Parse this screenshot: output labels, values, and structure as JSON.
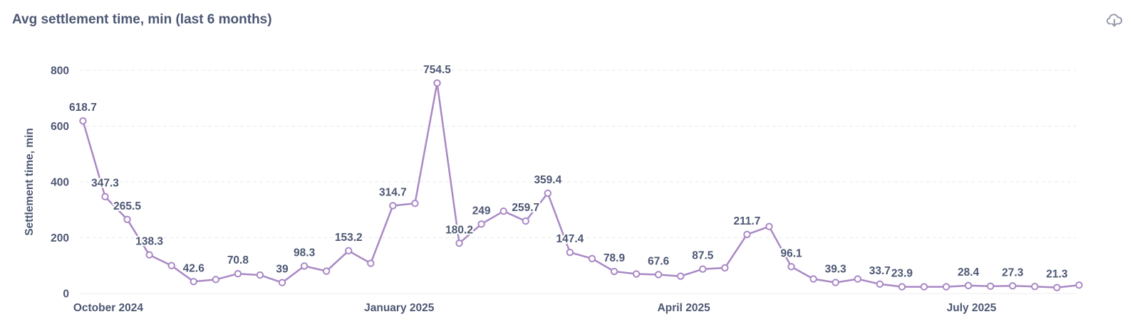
{
  "card": {
    "title": "Avg settlement time, min (last 6 months)",
    "download_icon": "cloud-download-icon"
  },
  "colors": {
    "series": "#a989c5",
    "text": "#4c5773",
    "grid": "#e6e8ec"
  },
  "chart_data": {
    "type": "line",
    "title": "Avg settlement time, min (last 6 months)",
    "xlabel": "",
    "ylabel": "Settlement time, min",
    "ylim": [
      0,
      800
    ],
    "yticks": [
      0,
      200,
      400,
      600,
      800
    ],
    "xlim": [
      "2024-09-22",
      "2025-08-03"
    ],
    "xticks": [
      {
        "date": "2024-10-01",
        "label": "October 2024"
      },
      {
        "date": "2025-01-01",
        "label": "January 2025"
      },
      {
        "date": "2025-04-01",
        "label": "April 2025"
      },
      {
        "date": "2025-07-01",
        "label": "July 2025"
      }
    ],
    "grid": true,
    "grid_style": "dashed horizontal",
    "legend": "none",
    "series": [
      {
        "color": "#a989c5",
        "points": [
          {
            "x": "2024-09-23",
            "y": 618.7,
            "label": "618.7"
          },
          {
            "x": "2024-09-30",
            "y": 347.3,
            "label": "347.3"
          },
          {
            "x": "2024-10-07",
            "y": 265.5,
            "label": "265.5"
          },
          {
            "x": "2024-10-14",
            "y": 138.3,
            "label": "138.3"
          },
          {
            "x": "2024-10-21",
            "y": 100
          },
          {
            "x": "2024-10-28",
            "y": 42.6,
            "label": "42.6"
          },
          {
            "x": "2024-11-04",
            "y": 50
          },
          {
            "x": "2024-11-11",
            "y": 70.8,
            "label": "70.8"
          },
          {
            "x": "2024-11-18",
            "y": 66
          },
          {
            "x": "2024-11-25",
            "y": 39,
            "label": "39"
          },
          {
            "x": "2024-12-02",
            "y": 98.3,
            "label": "98.3"
          },
          {
            "x": "2024-12-09",
            "y": 80
          },
          {
            "x": "2024-12-16",
            "y": 153.2,
            "label": "153.2"
          },
          {
            "x": "2024-12-23",
            "y": 108
          },
          {
            "x": "2024-12-30",
            "y": 314.7,
            "label": "314.7"
          },
          {
            "x": "2025-01-06",
            "y": 323
          },
          {
            "x": "2025-01-13",
            "y": 754.5,
            "label": "754.5"
          },
          {
            "x": "2025-01-20",
            "y": 180.2,
            "label": "180.2"
          },
          {
            "x": "2025-01-27",
            "y": 249,
            "label": "249"
          },
          {
            "x": "2025-02-03",
            "y": 295
          },
          {
            "x": "2025-02-10",
            "y": 259.7,
            "label": "259.7"
          },
          {
            "x": "2025-02-17",
            "y": 359.4,
            "label": "359.4"
          },
          {
            "x": "2025-02-24",
            "y": 147.4,
            "label": "147.4"
          },
          {
            "x": "2025-03-03",
            "y": 125
          },
          {
            "x": "2025-03-10",
            "y": 78.9,
            "label": "78.9"
          },
          {
            "x": "2025-03-17",
            "y": 70
          },
          {
            "x": "2025-03-24",
            "y": 67.6,
            "label": "67.6"
          },
          {
            "x": "2025-03-31",
            "y": 62
          },
          {
            "x": "2025-04-07",
            "y": 87.5,
            "label": "87.5"
          },
          {
            "x": "2025-04-14",
            "y": 92
          },
          {
            "x": "2025-04-21",
            "y": 211.7,
            "label": "211.7"
          },
          {
            "x": "2025-04-28",
            "y": 240
          },
          {
            "x": "2025-05-05",
            "y": 96.1,
            "label": "96.1"
          },
          {
            "x": "2025-05-12",
            "y": 52
          },
          {
            "x": "2025-05-19",
            "y": 39.3,
            "label": "39.3"
          },
          {
            "x": "2025-05-26",
            "y": 52
          },
          {
            "x": "2025-06-02",
            "y": 33.7,
            "label": "33.7"
          },
          {
            "x": "2025-06-09",
            "y": 23.9,
            "label": "23.9"
          },
          {
            "x": "2025-06-16",
            "y": 24
          },
          {
            "x": "2025-06-23",
            "y": 24
          },
          {
            "x": "2025-06-30",
            "y": 28.4,
            "label": "28.4"
          },
          {
            "x": "2025-07-07",
            "y": 26
          },
          {
            "x": "2025-07-14",
            "y": 27.3,
            "label": "27.3"
          },
          {
            "x": "2025-07-21",
            "y": 25
          },
          {
            "x": "2025-07-28",
            "y": 21.3,
            "label": "21.3"
          },
          {
            "x": "2025-08-04",
            "y": 30
          }
        ]
      }
    ]
  }
}
